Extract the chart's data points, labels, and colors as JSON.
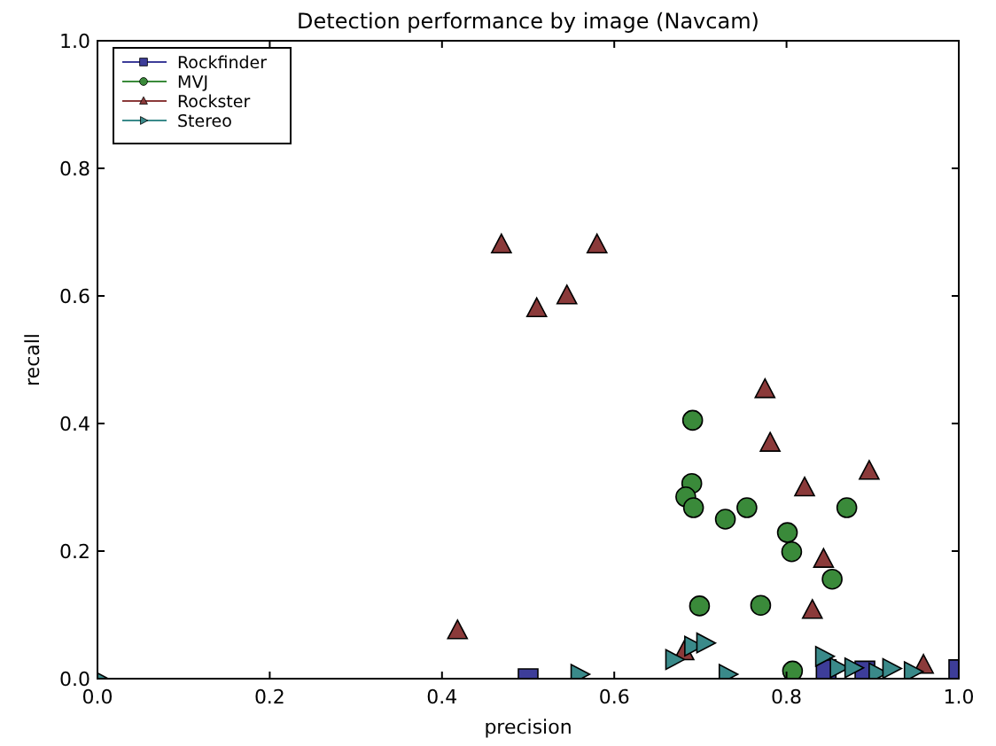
{
  "chart_data": {
    "type": "scatter",
    "title": "Detection performance by image (Navcam)",
    "xlabel": "precision",
    "ylabel": "recall",
    "xlim": [
      0,
      1
    ],
    "ylim": [
      0,
      1
    ],
    "xticks": [
      {
        "value": 0,
        "label": "0.0"
      },
      {
        "value": 0.2,
        "label": "0.2"
      },
      {
        "value": 0.4,
        "label": "0.4"
      },
      {
        "value": 0.6,
        "label": "0.6"
      },
      {
        "value": 0.8,
        "label": "0.8"
      },
      {
        "value": 1,
        "label": "1.0"
      }
    ],
    "yticks": [
      {
        "value": 0,
        "label": "0.0"
      },
      {
        "value": 0.2,
        "label": "0.2"
      },
      {
        "value": 0.4,
        "label": "0.4"
      },
      {
        "value": 0.6,
        "label": "0.6"
      },
      {
        "value": 0.8,
        "label": "0.8"
      },
      {
        "value": 1,
        "label": "1.0"
      }
    ],
    "legend": "top left",
    "grid": false,
    "series": [
      {
        "name": "Rockfinder",
        "color": "#3d3d99",
        "marker": "square",
        "x": [
          0.5,
          0.846,
          0.891,
          1.0
        ],
        "values": [
          0.0,
          0.014,
          0.012,
          0.014
        ]
      },
      {
        "name": "MVJ",
        "color": "#3a8a3a",
        "marker": "circle",
        "x": [
          0.691,
          0.69,
          0.683,
          0.692,
          0.729,
          0.754,
          0.801,
          0.806,
          0.87,
          0.853,
          0.699,
          0.77,
          0.807
        ],
        "values": [
          0.405,
          0.306,
          0.285,
          0.268,
          0.25,
          0.268,
          0.229,
          0.199,
          0.268,
          0.156,
          0.114,
          0.115,
          0.012
        ]
      },
      {
        "name": "Rockster",
        "color": "#8b3a3a",
        "marker": "triangle",
        "x": [
          0.469,
          0.51,
          0.545,
          0.58,
          0.418,
          0.775,
          0.781,
          0.896,
          0.821,
          0.843,
          0.83,
          0.681,
          0.959
        ],
        "values": [
          0.68,
          0.58,
          0.6,
          0.68,
          0.075,
          0.453,
          0.369,
          0.325,
          0.299,
          0.187,
          0.107,
          0.042,
          0.021
        ]
      },
      {
        "name": "Stereo",
        "color": "#3a8a8a",
        "marker": "triangle-right",
        "x": [
          0.0,
          0.559,
          0.669,
          0.691,
          0.705,
          0.731,
          0.843,
          0.86,
          0.877,
          0.905,
          0.921,
          0.946
        ],
        "values": [
          0.0,
          0.007,
          0.03,
          0.051,
          0.056,
          0.007,
          0.035,
          0.017,
          0.017,
          0.009,
          0.016,
          0.011
        ]
      }
    ]
  }
}
